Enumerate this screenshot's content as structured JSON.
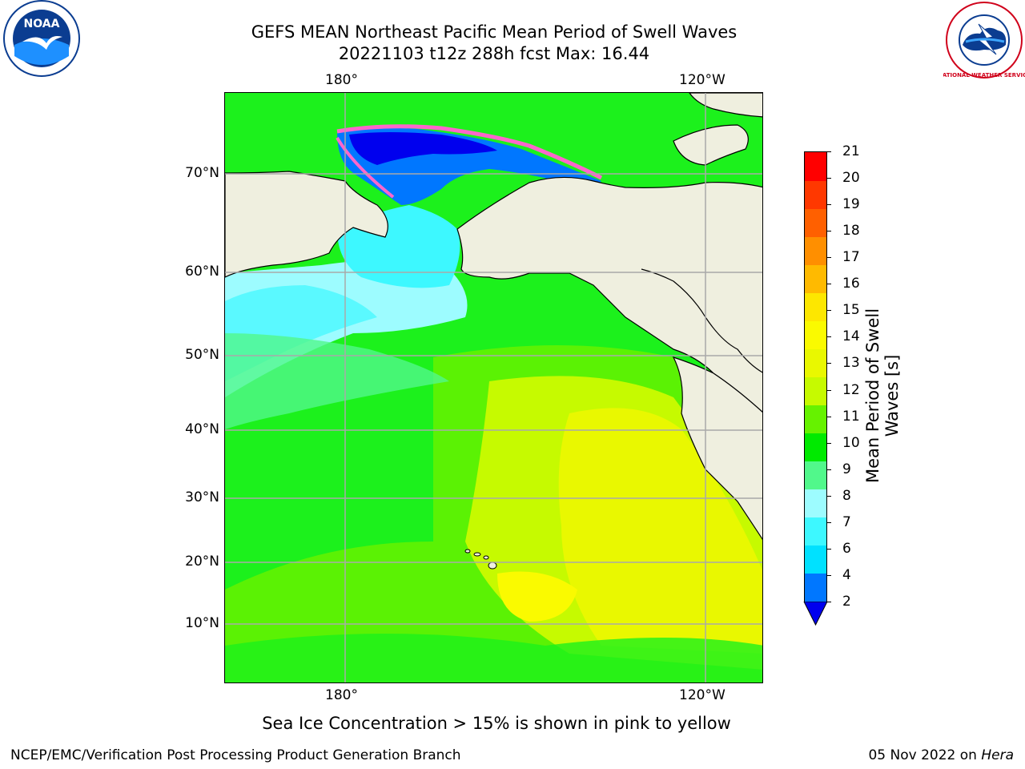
{
  "header": {
    "title_line1": "GEFS MEAN Northeast Pacific Mean Period of Swell Waves",
    "title_line2": "20221103 t12z 288h fcst   Max: 16.44"
  },
  "logos": {
    "left": "NOAA",
    "right": "NATIONAL WEATHER SERVICE"
  },
  "map": {
    "lon_labels_top": [
      "180°",
      "120°W"
    ],
    "lon_labels_bottom": [
      "180°",
      "120°W"
    ],
    "lat_labels": [
      "70°N",
      "60°N",
      "50°N",
      "40°N",
      "30°N",
      "20°N",
      "10°N"
    ],
    "land_color": "#efefdf",
    "ocean_green": "#1cf11c"
  },
  "colorbar": {
    "title": "Mean Period of Swell Waves [s]",
    "tick_labels": [
      "2",
      "4",
      "6",
      "7",
      "8",
      "9",
      "10",
      "11",
      "12",
      "13",
      "14",
      "15",
      "16",
      "17",
      "18",
      "19",
      "20",
      "21"
    ],
    "colors": [
      "#0077ff",
      "#00e1ff",
      "#3df8ff",
      "#9dfcff",
      "#51f88b",
      "#00ea00",
      "#66f200",
      "#c6fa00",
      "#e9f800",
      "#fafa00",
      "#fde700",
      "#ffba00",
      "#ff8f00",
      "#ff6000",
      "#ff3800",
      "#ff0000"
    ],
    "extend_color": "#0000ee"
  },
  "note": "Sea Ice Concentration > 15% is shown in pink to yellow",
  "footer": {
    "left": "NCEP/EMC/Verification Post Processing Product Generation Branch",
    "right_prefix": "05 Nov 2022 on ",
    "right_italic": "Hera"
  }
}
